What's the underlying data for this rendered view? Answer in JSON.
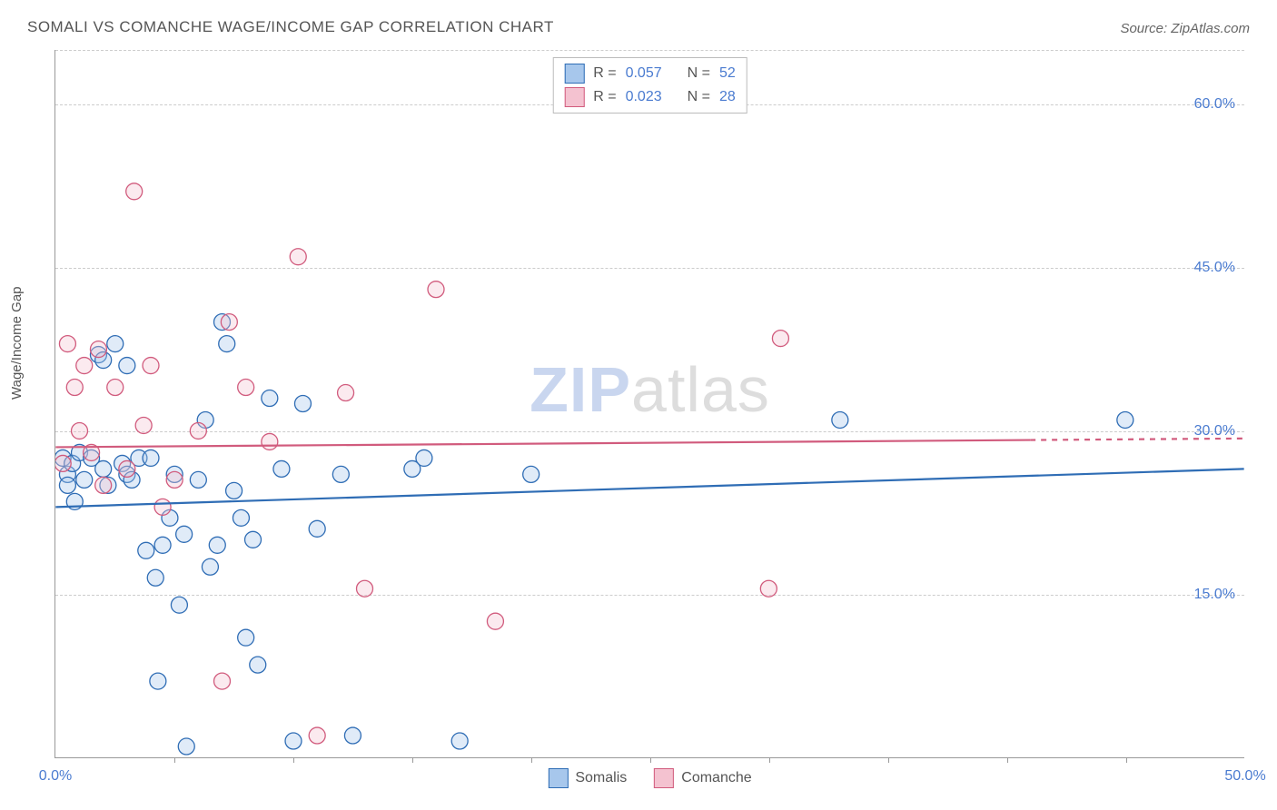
{
  "title": "SOMALI VS COMANCHE WAGE/INCOME GAP CORRELATION CHART",
  "source_label": "Source: ZipAtlas.com",
  "ylabel": "Wage/Income Gap",
  "watermark_a": "ZIP",
  "watermark_b": "atlas",
  "chart": {
    "type": "scatter",
    "background_color": "#ffffff",
    "grid_color": "#cccccc",
    "axis_color": "#999999",
    "label_text_color": "#555555",
    "tick_color": "#4a7bd0",
    "xlim": [
      0,
      50
    ],
    "ylim": [
      0,
      65
    ],
    "yticks": [
      15,
      30,
      45,
      60
    ],
    "ytick_labels": [
      "15.0%",
      "30.0%",
      "45.0%",
      "60.0%"
    ],
    "x_endpoints": [
      0,
      50
    ],
    "x_endpoint_labels": [
      "0.0%",
      "50.0%"
    ],
    "x_minor_ticks": [
      5,
      10,
      15,
      20,
      25,
      30,
      35,
      40,
      45
    ],
    "marker_radius": 9,
    "marker_stroke_width": 1.3,
    "marker_fill_opacity": 0.35,
    "trend_width": 2.2,
    "title_fontsize": 17,
    "label_fontsize": 15,
    "tick_fontsize": 16,
    "series": [
      {
        "name": "Somalis",
        "color": "#6fa3e0",
        "stroke": "#2f6db5",
        "fill": "#a7c7ec",
        "R": "0.057",
        "N": "52",
        "trend": {
          "y_at_x0": 23.0,
          "y_at_x50": 26.5,
          "dash_from_x": 50
        },
        "points": [
          [
            0.3,
            27.5
          ],
          [
            0.5,
            26.0
          ],
          [
            0.5,
            25.0
          ],
          [
            0.7,
            27.0
          ],
          [
            0.8,
            23.5
          ],
          [
            1.0,
            28.0
          ],
          [
            1.2,
            25.5
          ],
          [
            1.5,
            27.5
          ],
          [
            1.8,
            37.0
          ],
          [
            2.0,
            36.5
          ],
          [
            2.0,
            26.5
          ],
          [
            2.2,
            25.0
          ],
          [
            2.5,
            38.0
          ],
          [
            2.8,
            27.0
          ],
          [
            3.0,
            26.0
          ],
          [
            3.0,
            36.0
          ],
          [
            3.2,
            25.5
          ],
          [
            3.5,
            27.5
          ],
          [
            3.8,
            19.0
          ],
          [
            4.0,
            27.5
          ],
          [
            4.2,
            16.5
          ],
          [
            4.3,
            7.0
          ],
          [
            4.5,
            19.5
          ],
          [
            4.8,
            22.0
          ],
          [
            5.0,
            26.0
          ],
          [
            5.2,
            14.0
          ],
          [
            5.4,
            20.5
          ],
          [
            5.5,
            1.0
          ],
          [
            6.0,
            25.5
          ],
          [
            6.3,
            31.0
          ],
          [
            6.5,
            17.5
          ],
          [
            6.8,
            19.5
          ],
          [
            7.0,
            40.0
          ],
          [
            7.2,
            38.0
          ],
          [
            7.5,
            24.5
          ],
          [
            7.8,
            22.0
          ],
          [
            8.0,
            11.0
          ],
          [
            8.3,
            20.0
          ],
          [
            8.5,
            8.5
          ],
          [
            9.0,
            33.0
          ],
          [
            9.5,
            26.5
          ],
          [
            10.0,
            1.5
          ],
          [
            10.4,
            32.5
          ],
          [
            11.0,
            21.0
          ],
          [
            12.0,
            26.0
          ],
          [
            12.5,
            2.0
          ],
          [
            15.0,
            26.5
          ],
          [
            15.5,
            27.5
          ],
          [
            17.0,
            1.5
          ],
          [
            20.0,
            26.0
          ],
          [
            33.0,
            31.0
          ],
          [
            45.0,
            31.0
          ]
        ]
      },
      {
        "name": "Comanche",
        "color": "#e89ab0",
        "stroke": "#d15b7d",
        "fill": "#f4c2d0",
        "R": "0.023",
        "N": "28",
        "trend": {
          "y_at_x0": 28.5,
          "y_at_x50": 29.3,
          "dash_from_x": 41
        },
        "points": [
          [
            0.3,
            27.0
          ],
          [
            0.5,
            38.0
          ],
          [
            0.8,
            34.0
          ],
          [
            1.0,
            30.0
          ],
          [
            1.2,
            36.0
          ],
          [
            1.5,
            28.0
          ],
          [
            1.8,
            37.5
          ],
          [
            2.0,
            25.0
          ],
          [
            2.5,
            34.0
          ],
          [
            3.0,
            26.5
          ],
          [
            3.3,
            52.0
          ],
          [
            3.7,
            30.5
          ],
          [
            4.0,
            36.0
          ],
          [
            4.5,
            23.0
          ],
          [
            5.0,
            25.5
          ],
          [
            6.0,
            30.0
          ],
          [
            7.0,
            7.0
          ],
          [
            7.3,
            40.0
          ],
          [
            8.0,
            34.0
          ],
          [
            9.0,
            29.0
          ],
          [
            10.2,
            46.0
          ],
          [
            11.0,
            2.0
          ],
          [
            12.2,
            33.5
          ],
          [
            13.0,
            15.5
          ],
          [
            16.0,
            43.0
          ],
          [
            18.5,
            12.5
          ],
          [
            30.0,
            15.5
          ],
          [
            30.5,
            38.5
          ]
        ]
      }
    ],
    "legend_series_order": [
      "Somalis",
      "Comanche"
    ]
  }
}
